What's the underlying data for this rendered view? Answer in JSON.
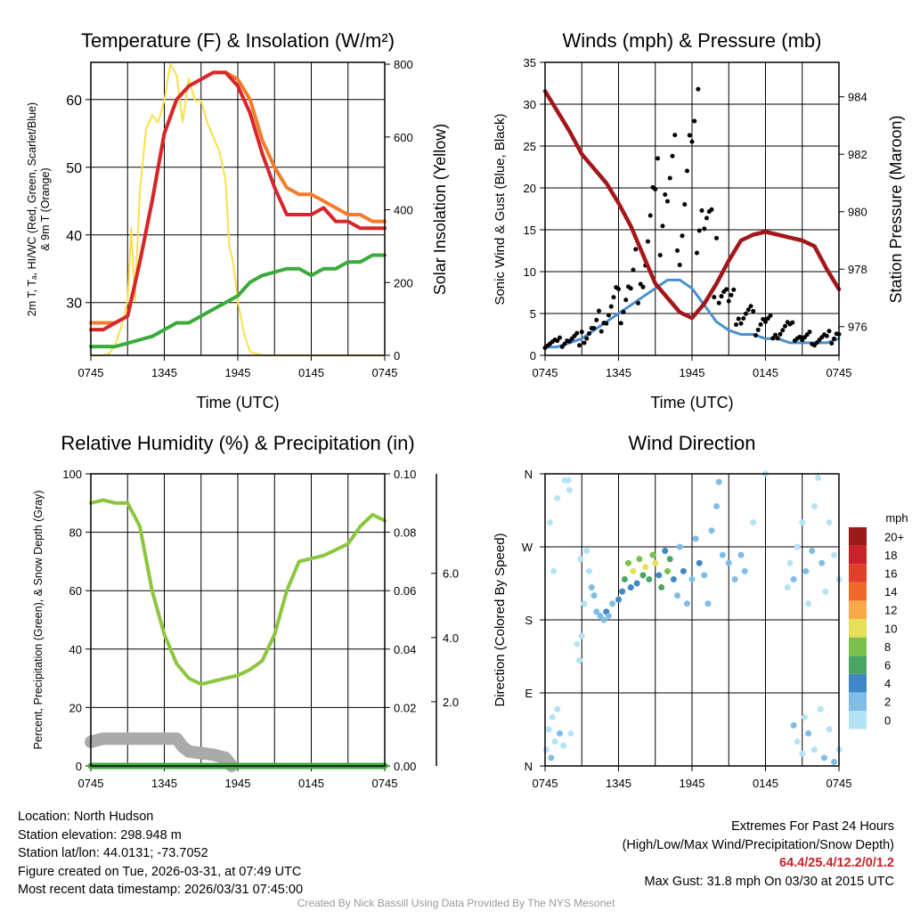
{
  "panels": {
    "temp": {
      "title": "Temperature (F) & Insolation (W/m²)",
      "xlabel": "Time (UTC)",
      "ylabel_line1": "2m T, Tₐ, HI/WC (Red, Green, Scarlet/Blue)",
      "ylabel_line2": "& 9m T (Orange)",
      "y2label": "Solar Insolation (Yellow)"
    },
    "wind": {
      "title": "Winds (mph) & Pressure (mb)",
      "xlabel": "Time (UTC)",
      "ylabel": "Sonic Wind & Gust (Blue, Black)",
      "y2label": "Station Pressure (Maroon)"
    },
    "rh": {
      "title": "Relative Humidity (%) & Precipitation (in)",
      "ylabel": "Percent, Precipitation (Green), & Snow Depth (Gray)"
    },
    "dir": {
      "title": "Wind Direction",
      "ylabel": "Direction (Colored By Speed)",
      "colorbar_title": "mph"
    }
  },
  "chart_data": [
    {
      "type": "line",
      "title": "Temperature (F) & Insolation (W/m2)",
      "xlabel": "Time (UTC)",
      "xticks": [
        "0745",
        "1345",
        "1945",
        "0145",
        "0745"
      ],
      "xlim": [
        0,
        24
      ],
      "ylim": [
        22.2,
        65.5
      ],
      "yticks": [
        30,
        40,
        50,
        60
      ],
      "y2lim": [
        0,
        805
      ],
      "y2ticks": [
        0,
        200,
        400,
        600,
        800
      ],
      "x": [
        0,
        1,
        2,
        3,
        4,
        5,
        6,
        7,
        8,
        9,
        10,
        11,
        12,
        13,
        14,
        15,
        16,
        17,
        18,
        19,
        20,
        21,
        22,
        23,
        24
      ],
      "series": [
        {
          "name": "9m T",
          "color": "#f47b2a",
          "axis": "left",
          "values": [
            27,
            27,
            27,
            28,
            36,
            45,
            55,
            60,
            62,
            63,
            64,
            64,
            63,
            60,
            54,
            50,
            47,
            46,
            46,
            45,
            44,
            43,
            43,
            42,
            42
          ]
        },
        {
          "name": "2m T",
          "color": "#d7262b",
          "axis": "left",
          "values": [
            26,
            26,
            27,
            28,
            36,
            45,
            55,
            60,
            62,
            63,
            64,
            64,
            62,
            58,
            52,
            47,
            43,
            43,
            43,
            44,
            42,
            42,
            41,
            41,
            41
          ]
        },
        {
          "name": "Td",
          "color": "#3aab3a",
          "axis": "left",
          "values": [
            23.5,
            23.5,
            23.5,
            24,
            24.5,
            25,
            26,
            27,
            27,
            28,
            29,
            30,
            31,
            33,
            34,
            34.5,
            35,
            35,
            34,
            35,
            35,
            36,
            36,
            37,
            37
          ]
        }
      ],
      "solar": {
        "name": "Solar Insolation",
        "color": "#f7e04a",
        "x": [
          0,
          1,
          1.5,
          2,
          2.5,
          3,
          3.3,
          3.6,
          4,
          4.5,
          5,
          5.5,
          6,
          6.5,
          7,
          7.5,
          8,
          8.5,
          9,
          9.5,
          10,
          10.5,
          11,
          11.3,
          11.6,
          12,
          12.5,
          13,
          14,
          24
        ],
        "values": [
          0,
          0,
          5,
          30,
          80,
          150,
          350,
          150,
          450,
          620,
          660,
          640,
          700,
          800,
          770,
          640,
          760,
          700,
          700,
          640,
          600,
          560,
          480,
          300,
          260,
          150,
          60,
          10,
          0,
          0
        ]
      }
    },
    {
      "type": "line",
      "title": "Winds (mph) & Pressure (mb)",
      "xlabel": "Time (UTC)",
      "xticks": [
        "0745",
        "1345",
        "1945",
        "0145",
        "0745"
      ],
      "xlim": [
        0,
        24
      ],
      "ylim": [
        0,
        35
      ],
      "yticks": [
        0,
        5,
        10,
        15,
        20,
        25,
        30,
        35
      ],
      "y2lim": [
        975.0,
        985.2
      ],
      "y2ticks": [
        976,
        978,
        980,
        982,
        984
      ],
      "x": [
        0,
        1,
        2,
        3,
        4,
        5,
        6,
        7,
        8,
        9,
        10,
        11,
        12,
        13,
        14,
        15,
        16,
        17,
        18,
        19,
        20,
        21,
        22,
        23,
        24
      ],
      "series": [
        {
          "name": "Sonic Wind",
          "color": "#4a90d0",
          "axis": "left",
          "values": [
            1,
            1,
            1.5,
            2,
            3,
            4,
            5,
            6,
            7,
            8,
            9,
            9,
            8,
            6,
            4,
            3,
            2.5,
            2.5,
            2,
            2,
            1.5,
            1.5,
            1.5,
            1.5,
            2
          ]
        },
        {
          "name": "Gust",
          "color": "#000000",
          "axis": "left",
          "type": "scatter",
          "values": [
            1.5,
            1.5,
            2,
            2,
            3,
            5,
            6,
            8,
            12,
            16,
            20,
            18,
            22,
            18,
            10,
            6,
            5,
            4,
            4,
            3,
            3,
            2,
            2,
            2,
            3
          ]
        },
        {
          "name": "Station Pressure",
          "color": "#a3171b",
          "axis": "right",
          "values": [
            984.2,
            983.5,
            982.8,
            982,
            981.5,
            981,
            980.3,
            979.5,
            978.5,
            977.5,
            977,
            976.5,
            976.3,
            976.8,
            977.5,
            978.3,
            979,
            979.2,
            979.3,
            979.2,
            979.1,
            979,
            978.8,
            978,
            977.3
          ]
        }
      ],
      "peak_gust": {
        "x": 12.5,
        "value": 31.8
      }
    },
    {
      "type": "line",
      "title": "Relative Humidity (%) & Precipitation (in)",
      "xticks": [
        "0745",
        "1345",
        "1945",
        "0145",
        "0745"
      ],
      "xlim": [
        0,
        24
      ],
      "ylim": [
        0,
        100
      ],
      "yticks": [
        0,
        20,
        40,
        60,
        80,
        100
      ],
      "y2lim": [
        0,
        0.1
      ],
      "y2ticks": [
        "0.00",
        "0.02",
        "0.04",
        "0.06",
        "0.08",
        "0.10"
      ],
      "y3lim": [
        0,
        9.1
      ],
      "y3ticks": [
        "2.0",
        "4.0",
        "6.0"
      ],
      "x": [
        0,
        1,
        2,
        3,
        4,
        5,
        6,
        7,
        8,
        9,
        10,
        11,
        12,
        13,
        14,
        15,
        16,
        17,
        18,
        19,
        20,
        21,
        22,
        23,
        24
      ],
      "series": [
        {
          "name": "Relative Humidity",
          "color": "#8cc63f",
          "axis": "left",
          "values": [
            90,
            91,
            90,
            90,
            82,
            60,
            45,
            35,
            30,
            28,
            29,
            30,
            31,
            33,
            36,
            45,
            60,
            70,
            71,
            72,
            74,
            76,
            82,
            86,
            84
          ]
        },
        {
          "name": "Precipitation",
          "color": "#3aab3a",
          "axis": "right",
          "values": [
            0,
            0,
            0,
            0,
            0,
            0,
            0,
            0,
            0,
            0,
            0,
            0,
            0,
            0,
            0,
            0,
            0,
            0,
            0,
            0,
            0,
            0,
            0,
            0,
            0
          ]
        }
      ],
      "snow_depth": {
        "name": "Snow Depth",
        "color": "#aaaaaa",
        "x": [
          0,
          1,
          2,
          3,
          4,
          5,
          6,
          7,
          7.5,
          8,
          9,
          10,
          11,
          11.5
        ],
        "values": [
          0.75,
          0.85,
          0.85,
          0.85,
          0.85,
          0.85,
          0.85,
          0.85,
          0.6,
          0.45,
          0.4,
          0.35,
          0.25,
          0
        ]
      }
    },
    {
      "type": "scatter",
      "title": "Wind Direction",
      "xticks": [
        "0745",
        "1345",
        "1945",
        "0145",
        "0745"
      ],
      "xlim": [
        0,
        24
      ],
      "ylim": [
        0,
        360
      ],
      "yticks": [
        "N",
        "E",
        "S",
        "W",
        "N"
      ],
      "colorbar": {
        "title": "mph",
        "labels": [
          "0",
          "2",
          "4",
          "6",
          "8",
          "10",
          "12",
          "14",
          "16",
          "18",
          "20+"
        ],
        "colors": [
          "#b3e3f5",
          "#7fbde6",
          "#3f88c5",
          "#4aa564",
          "#7bc04a",
          "#e6e05a",
          "#f9a94a",
          "#ee6a2a",
          "#e0402a",
          "#c8222a",
          "#9b1a1c"
        ]
      },
      "points": [
        [
          0.1,
          20,
          1
        ],
        [
          0.3,
          45,
          1
        ],
        [
          0.5,
          10,
          2
        ],
        [
          0.6,
          60,
          1
        ],
        [
          0.8,
          30,
          1
        ],
        [
          1.0,
          70,
          1
        ],
        [
          1.2,
          40,
          2
        ],
        [
          0.4,
          300,
          1
        ],
        [
          0.7,
          240,
          1
        ],
        [
          1.0,
          330,
          1
        ],
        [
          1.6,
          352,
          0
        ],
        [
          1.9,
          352,
          0
        ],
        [
          2.0,
          340,
          1
        ],
        [
          1.5,
          25,
          1
        ],
        [
          2.1,
          40,
          1
        ],
        [
          2.6,
          150,
          1
        ],
        [
          2.8,
          130,
          1
        ],
        [
          3.0,
          160,
          1
        ],
        [
          2.9,
          255,
          1
        ],
        [
          3.2,
          200,
          1
        ],
        [
          3.4,
          265,
          1
        ],
        [
          3.6,
          240,
          1
        ],
        [
          3.8,
          220,
          2
        ],
        [
          4.0,
          210,
          2
        ],
        [
          4.2,
          190,
          3
        ],
        [
          4.5,
          185,
          3
        ],
        [
          4.8,
          180,
          3
        ],
        [
          5.0,
          190,
          4
        ],
        [
          5.2,
          185,
          3
        ],
        [
          5.5,
          200,
          2
        ],
        [
          6.0,
          205,
          4
        ],
        [
          6.3,
          215,
          4
        ],
        [
          6.5,
          230,
          6
        ],
        [
          6.8,
          250,
          8
        ],
        [
          7.0,
          220,
          5
        ],
        [
          7.2,
          240,
          10
        ],
        [
          7.5,
          225,
          4
        ],
        [
          7.7,
          255,
          8
        ],
        [
          8.0,
          235,
          6
        ],
        [
          8.2,
          245,
          10
        ],
        [
          8.5,
          230,
          6
        ],
        [
          8.8,
          260,
          8
        ],
        [
          9.0,
          250,
          10
        ],
        [
          9.3,
          235,
          4
        ],
        [
          9.5,
          220,
          6
        ],
        [
          9.8,
          265,
          5
        ],
        [
          10.0,
          240,
          8
        ],
        [
          10.2,
          255,
          6
        ],
        [
          10.5,
          230,
          4
        ],
        [
          10.8,
          210,
          3
        ],
        [
          11.0,
          270,
          3
        ],
        [
          11.3,
          240,
          4
        ],
        [
          11.6,
          200,
          3
        ],
        [
          12.0,
          230,
          3
        ],
        [
          12.3,
          280,
          2
        ],
        [
          12.6,
          250,
          4
        ],
        [
          13.0,
          235,
          2
        ],
        [
          13.3,
          200,
          3
        ],
        [
          13.6,
          290,
          2
        ],
        [
          14.0,
          320,
          2
        ],
        [
          14.2,
          350,
          2
        ],
        [
          14.5,
          260,
          2
        ],
        [
          15.0,
          250,
          3
        ],
        [
          15.5,
          230,
          2
        ],
        [
          16.0,
          260,
          3
        ],
        [
          16.3,
          240,
          2
        ],
        [
          17.0,
          300,
          1
        ],
        [
          18.0,
          360,
          1
        ],
        [
          19.8,
          220,
          1
        ],
        [
          20.0,
          250,
          1
        ],
        [
          20.3,
          230,
          2
        ],
        [
          20.6,
          270,
          1
        ],
        [
          21.0,
          300,
          1
        ],
        [
          21.3,
          240,
          2
        ],
        [
          21.5,
          200,
          1
        ],
        [
          21.8,
          265,
          2
        ],
        [
          22.0,
          320,
          1
        ],
        [
          22.3,
          355,
          1
        ],
        [
          22.6,
          250,
          2
        ],
        [
          22.9,
          215,
          1
        ],
        [
          23.2,
          300,
          1
        ],
        [
          23.6,
          260,
          1
        ],
        [
          24.0,
          230,
          1
        ],
        [
          20.3,
          50,
          2
        ],
        [
          20.6,
          30,
          1
        ],
        [
          21.0,
          15,
          1
        ],
        [
          21.2,
          60,
          1
        ],
        [
          21.5,
          40,
          2
        ],
        [
          22.0,
          20,
          1
        ],
        [
          22.5,
          70,
          1
        ],
        [
          22.8,
          10,
          2
        ],
        [
          23.2,
          45,
          1
        ],
        [
          23.6,
          5,
          2
        ],
        [
          24.0,
          20,
          1
        ]
      ]
    }
  ],
  "footer": {
    "location": "Location: North Hudson",
    "elevation": "Station elevation: 298.948 m",
    "latlon": "Station lat/lon: 44.0131; -73.7052",
    "created": "Figure created on Tue, 2026-03-31, at 07:49 UTC",
    "recent": "Most recent data timestamp: 2026/03/31 07:45:00",
    "extremes_title": "Extremes For Past 24 Hours",
    "extremes_legend": "(High/Low/Max Wind/Precipitation/Snow Depth)",
    "extremes_values": "64.4/25.4/12.2/0/1.2",
    "max_gust": "Max Gust: 31.8 mph On 03/30 at 2015 UTC",
    "credit": "Created By Nick Bassill Using Data Provided By The NYS Mesonet"
  }
}
